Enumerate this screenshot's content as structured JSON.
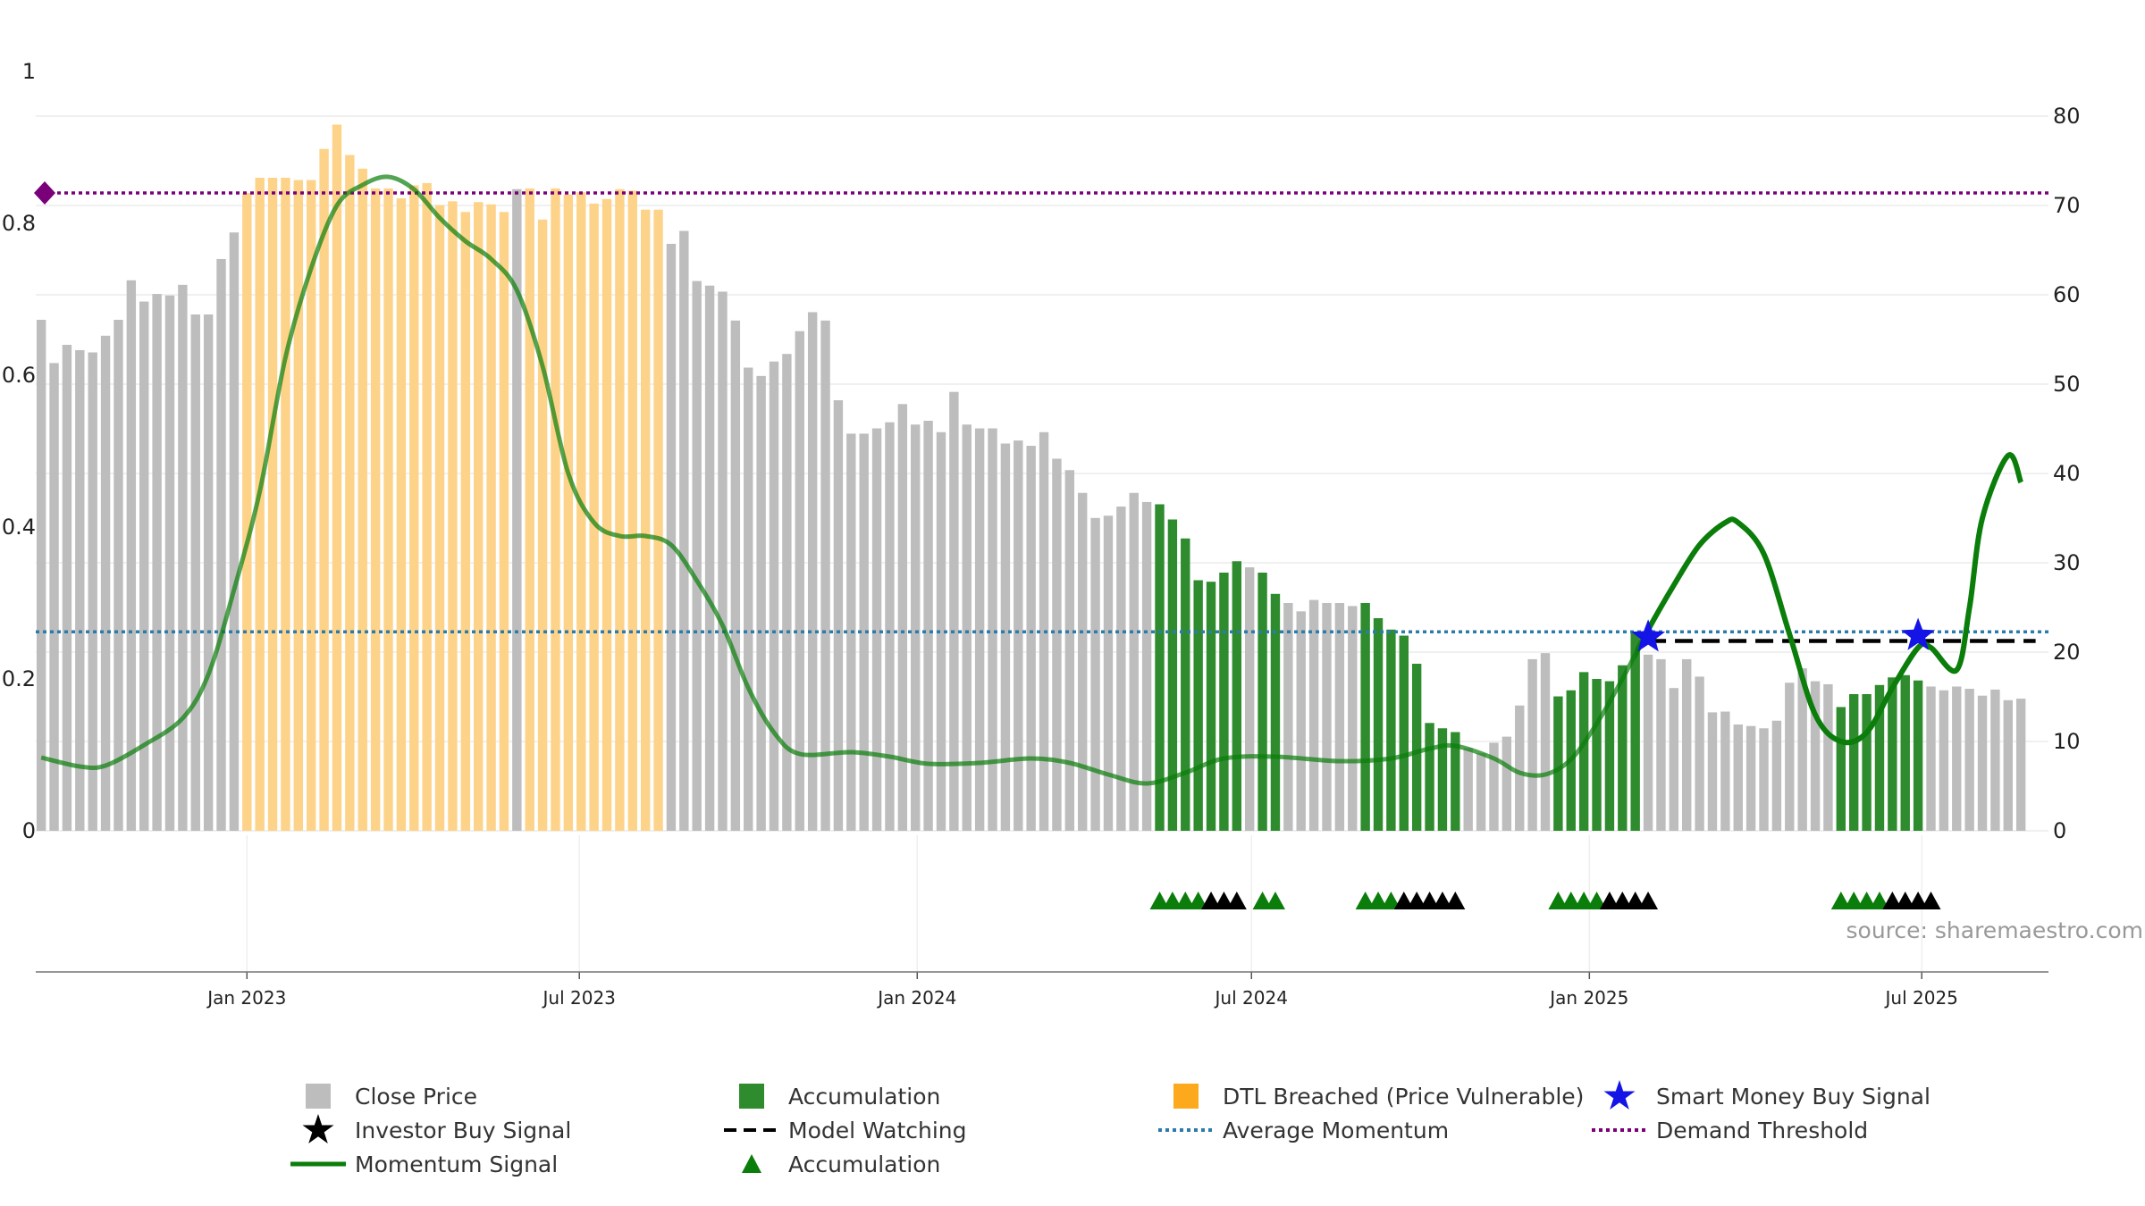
{
  "chart_data": {
    "type": "bar",
    "source": "source: sharemaestro.com",
    "y_left": {
      "lim": [
        0,
        1
      ],
      "ticks": [
        "0",
        "0.2",
        "0.4",
        "0.6",
        "0.8",
        "1"
      ]
    },
    "y_right": {
      "lim": [
        0,
        85
      ],
      "ticks": [
        "0",
        "10",
        "20",
        "30",
        "40",
        "50",
        "60",
        "70",
        "80"
      ]
    },
    "x_ticks": [
      "Jan 2023",
      "Jul 2023",
      "Jan 2024",
      "Jul 2024",
      "Jan 2025",
      "Jul 2025"
    ],
    "x_range": [
      "2022-09-08",
      "2025-09-08"
    ],
    "grid": true,
    "legend_position": "bottom",
    "colors": {
      "close": "#bdbdbd",
      "accumulation": "#2e8b2e",
      "dtl": "#fdd389",
      "momentum": "#0a7d0a",
      "average": "#2b7bab",
      "threshold": "#7a007a",
      "smart_money": "#1414e6"
    },
    "close_price": [
      [
        "2022-09-11",
        0.673
      ],
      [
        "2022-09-18",
        0.616
      ],
      [
        "2022-09-25",
        0.64
      ],
      [
        "2022-10-02",
        0.633
      ],
      [
        "2022-10-09",
        0.63
      ],
      [
        "2022-10-16",
        0.652
      ],
      [
        "2022-10-23",
        0.673
      ],
      [
        "2022-10-30",
        0.725
      ],
      [
        "2022-11-06",
        0.697
      ],
      [
        "2022-11-13",
        0.707
      ],
      [
        "2022-11-20",
        0.705
      ],
      [
        "2022-11-27",
        0.719
      ],
      [
        "2022-12-04",
        0.68
      ],
      [
        "2022-12-11",
        0.68
      ],
      [
        "2022-12-18",
        0.753
      ],
      [
        "2022-12-25",
        0.788
      ],
      [
        "2023-01-01",
        0.84,
        "dtl"
      ],
      [
        "2023-01-08",
        0.86,
        "dtl"
      ],
      [
        "2023-01-15",
        0.86,
        "dtl"
      ],
      [
        "2023-01-22",
        0.86,
        "dtl"
      ],
      [
        "2023-01-29",
        0.857,
        "dtl"
      ],
      [
        "2023-02-05",
        0.857,
        "dtl"
      ],
      [
        "2023-02-12",
        0.898,
        "dtl"
      ],
      [
        "2023-02-19",
        0.93,
        "dtl"
      ],
      [
        "2023-02-26",
        0.89,
        "dtl"
      ],
      [
        "2023-03-05",
        0.872,
        "dtl"
      ],
      [
        "2023-03-12",
        0.846,
        "dtl"
      ],
      [
        "2023-03-19",
        0.846,
        "dtl"
      ],
      [
        "2023-03-26",
        0.833,
        "dtl"
      ],
      [
        "2023-04-02",
        0.85,
        "dtl"
      ],
      [
        "2023-04-09",
        0.853,
        "dtl"
      ],
      [
        "2023-04-16",
        0.824,
        "dtl"
      ],
      [
        "2023-04-23",
        0.829,
        "dtl"
      ],
      [
        "2023-04-30",
        0.815,
        "dtl"
      ],
      [
        "2023-05-07",
        0.828,
        "dtl"
      ],
      [
        "2023-05-14",
        0.825,
        "dtl"
      ],
      [
        "2023-05-21",
        0.815,
        "dtl"
      ],
      [
        "2023-05-28",
        0.845
      ],
      [
        "2023-06-04",
        0.846,
        "dtl"
      ],
      [
        "2023-06-11",
        0.805,
        "dtl"
      ],
      [
        "2023-06-18",
        0.846,
        "dtl"
      ],
      [
        "2023-06-25",
        0.838,
        "dtl"
      ],
      [
        "2023-07-02",
        0.841,
        "dtl"
      ],
      [
        "2023-07-09",
        0.826,
        "dtl"
      ],
      [
        "2023-07-16",
        0.832,
        "dtl"
      ],
      [
        "2023-07-23",
        0.845,
        "dtl"
      ],
      [
        "2023-07-30",
        0.843,
        "dtl"
      ],
      [
        "2023-08-06",
        0.818,
        "dtl"
      ],
      [
        "2023-08-13",
        0.818,
        "dtl"
      ],
      [
        "2023-08-20",
        0.773
      ],
      [
        "2023-08-27",
        0.79
      ],
      [
        "2023-09-03",
        0.724
      ],
      [
        "2023-09-10",
        0.718
      ],
      [
        "2023-09-17",
        0.71
      ],
      [
        "2023-09-24",
        0.672
      ],
      [
        "2023-10-01",
        0.61
      ],
      [
        "2023-10-08",
        0.599
      ],
      [
        "2023-10-15",
        0.618
      ],
      [
        "2023-10-22",
        0.628
      ],
      [
        "2023-10-29",
        0.658
      ],
      [
        "2023-11-05",
        0.683
      ],
      [
        "2023-11-12",
        0.672
      ],
      [
        "2023-11-19",
        0.567
      ],
      [
        "2023-11-26",
        0.523
      ],
      [
        "2023-12-03",
        0.523
      ],
      [
        "2023-12-10",
        0.53
      ],
      [
        "2023-12-17",
        0.538
      ],
      [
        "2023-12-24",
        0.562
      ],
      [
        "2023-12-31",
        0.535
      ],
      [
        "2024-01-07",
        0.54
      ],
      [
        "2024-01-14",
        0.525
      ],
      [
        "2024-01-21",
        0.578
      ],
      [
        "2024-01-28",
        0.535
      ],
      [
        "2024-02-04",
        0.53
      ],
      [
        "2024-02-11",
        0.53
      ],
      [
        "2024-02-18",
        0.51
      ],
      [
        "2024-02-25",
        0.514
      ],
      [
        "2024-03-03",
        0.507
      ],
      [
        "2024-03-10",
        0.525
      ],
      [
        "2024-03-17",
        0.49
      ],
      [
        "2024-03-24",
        0.475
      ],
      [
        "2024-03-31",
        0.445
      ],
      [
        "2024-04-07",
        0.412
      ],
      [
        "2024-04-14",
        0.415
      ],
      [
        "2024-04-21",
        0.427
      ],
      [
        "2024-04-28",
        0.445
      ],
      [
        "2024-05-05",
        0.433
      ],
      [
        "2024-05-12",
        0.43,
        "acc"
      ],
      [
        "2024-05-19",
        0.41,
        "acc"
      ],
      [
        "2024-05-26",
        0.385,
        "acc"
      ],
      [
        "2024-06-02",
        0.33,
        "acc"
      ],
      [
        "2024-06-09",
        0.328,
        "acc"
      ],
      [
        "2024-06-16",
        0.34,
        "acc"
      ],
      [
        "2024-06-23",
        0.355,
        "acc"
      ],
      [
        "2024-06-30",
        0.347
      ],
      [
        "2024-07-07",
        0.34,
        "acc"
      ],
      [
        "2024-07-14",
        0.312,
        "acc"
      ],
      [
        "2024-07-21",
        0.3
      ],
      [
        "2024-07-28",
        0.289
      ],
      [
        "2024-08-04",
        0.304
      ],
      [
        "2024-08-11",
        0.3
      ],
      [
        "2024-08-18",
        0.3
      ],
      [
        "2024-08-25",
        0.296
      ],
      [
        "2024-09-01",
        0.3,
        "acc"
      ],
      [
        "2024-09-08",
        0.28,
        "acc"
      ],
      [
        "2024-09-15",
        0.265,
        "acc"
      ],
      [
        "2024-09-22",
        0.257,
        "acc"
      ],
      [
        "2024-09-29",
        0.22,
        "acc"
      ],
      [
        "2024-10-06",
        0.142,
        "acc"
      ],
      [
        "2024-10-13",
        0.135,
        "acc"
      ],
      [
        "2024-10-20",
        0.13,
        "acc"
      ],
      [
        "2024-10-27",
        0.109
      ],
      [
        "2024-11-03",
        0.102
      ],
      [
        "2024-11-10",
        0.116
      ],
      [
        "2024-11-17",
        0.124
      ],
      [
        "2024-11-24",
        0.165
      ],
      [
        "2024-12-01",
        0.226
      ],
      [
        "2024-12-08",
        0.234
      ],
      [
        "2024-12-15",
        0.177,
        "acc"
      ],
      [
        "2024-12-22",
        0.185,
        "acc"
      ],
      [
        "2024-12-29",
        0.209,
        "acc"
      ],
      [
        "2025-01-05",
        0.2,
        "acc"
      ],
      [
        "2025-01-12",
        0.197,
        "acc"
      ],
      [
        "2025-01-19",
        0.218,
        "acc"
      ],
      [
        "2025-01-26",
        0.26,
        "acc"
      ],
      [
        "2025-02-02",
        0.232
      ],
      [
        "2025-02-09",
        0.226
      ],
      [
        "2025-02-16",
        0.188
      ],
      [
        "2025-02-23",
        0.226
      ],
      [
        "2025-03-02",
        0.203
      ],
      [
        "2025-03-09",
        0.156
      ],
      [
        "2025-03-16",
        0.157
      ],
      [
        "2025-03-23",
        0.14
      ],
      [
        "2025-03-30",
        0.138
      ],
      [
        "2025-04-06",
        0.135
      ],
      [
        "2025-04-13",
        0.145
      ],
      [
        "2025-04-20",
        0.195
      ],
      [
        "2025-04-27",
        0.214
      ],
      [
        "2025-05-04",
        0.197
      ],
      [
        "2025-05-11",
        0.193
      ],
      [
        "2025-05-18",
        0.163,
        "acc"
      ],
      [
        "2025-05-25",
        0.18,
        "acc"
      ],
      [
        "2025-06-01",
        0.18,
        "acc"
      ],
      [
        "2025-06-08",
        0.192,
        "acc"
      ],
      [
        "2025-06-15",
        0.202,
        "acc"
      ],
      [
        "2025-06-22",
        0.205,
        "acc"
      ],
      [
        "2025-06-29",
        0.198,
        "acc"
      ],
      [
        "2025-07-06",
        0.19
      ],
      [
        "2025-07-13",
        0.185
      ],
      [
        "2025-07-20",
        0.19
      ],
      [
        "2025-07-27",
        0.187
      ],
      [
        "2025-08-03",
        0.178
      ],
      [
        "2025-08-10",
        0.186
      ],
      [
        "2025-08-17",
        0.172
      ],
      [
        "2025-08-24",
        0.174
      ]
    ],
    "momentum": [
      [
        "2022-09-11",
        8.2
      ],
      [
        "2022-10-02",
        7.2
      ],
      [
        "2022-10-16",
        7.3
      ],
      [
        "2022-11-06",
        9.6
      ],
      [
        "2022-11-27",
        12.6
      ],
      [
        "2022-12-11",
        17.5
      ],
      [
        "2022-12-25",
        27
      ],
      [
        "2023-01-08",
        38
      ],
      [
        "2023-01-22",
        53
      ],
      [
        "2023-02-05",
        63
      ],
      [
        "2023-02-19",
        70
      ],
      [
        "2023-03-05",
        72.3
      ],
      [
        "2023-03-19",
        73.2
      ],
      [
        "2023-04-02",
        71.8
      ],
      [
        "2023-04-16",
        68.6
      ],
      [
        "2023-04-30",
        66
      ],
      [
        "2023-05-14",
        64
      ],
      [
        "2023-05-28",
        60.5
      ],
      [
        "2023-06-11",
        52
      ],
      [
        "2023-06-25",
        40
      ],
      [
        "2023-07-09",
        34.5
      ],
      [
        "2023-07-23",
        33
      ],
      [
        "2023-08-06",
        33
      ],
      [
        "2023-08-20",
        32
      ],
      [
        "2023-09-03",
        28
      ],
      [
        "2023-09-17",
        23
      ],
      [
        "2023-10-01",
        16
      ],
      [
        "2023-10-15",
        11
      ],
      [
        "2023-10-29",
        8.6
      ],
      [
        "2023-11-26",
        8.8
      ],
      [
        "2023-12-17",
        8.3
      ],
      [
        "2024-01-07",
        7.5
      ],
      [
        "2024-02-04",
        7.6
      ],
      [
        "2024-03-03",
        8.1
      ],
      [
        "2024-03-24",
        7.6
      ],
      [
        "2024-04-14",
        6.3
      ],
      [
        "2024-05-05",
        5.3
      ],
      [
        "2024-05-26",
        6.5
      ],
      [
        "2024-06-16",
        8.1
      ],
      [
        "2024-07-14",
        8.3
      ],
      [
        "2024-08-18",
        7.8
      ],
      [
        "2024-09-15",
        8.1
      ],
      [
        "2024-10-06",
        9.2
      ],
      [
        "2024-10-20",
        9.5
      ],
      [
        "2024-11-10",
        8.1
      ],
      [
        "2024-11-24",
        6.5
      ],
      [
        "2024-12-08",
        6.3
      ],
      [
        "2024-12-22",
        8
      ],
      [
        "2025-01-05",
        12
      ],
      [
        "2025-01-19",
        17
      ],
      [
        "2025-02-02",
        22.5
      ],
      [
        "2025-02-16",
        27.5
      ],
      [
        "2025-03-02",
        32
      ],
      [
        "2025-03-16",
        34.5
      ],
      [
        "2025-03-23",
        34.5
      ],
      [
        "2025-04-06",
        31
      ],
      [
        "2025-04-20",
        22
      ],
      [
        "2025-05-04",
        13
      ],
      [
        "2025-05-18",
        10
      ],
      [
        "2025-06-01",
        11
      ],
      [
        "2025-06-15",
        16
      ],
      [
        "2025-06-29",
        20.5
      ],
      [
        "2025-07-06",
        20.5
      ],
      [
        "2025-07-20",
        18
      ],
      [
        "2025-07-27",
        25
      ],
      [
        "2025-08-03",
        35
      ],
      [
        "2025-08-17",
        42
      ],
      [
        "2025-08-24",
        39
      ]
    ],
    "demand_threshold": 0.84,
    "average_momentum": 0.262,
    "smart_money_buy_signals": [
      [
        "2025-02-02",
        0.255
      ],
      [
        "2025-06-29",
        0.257
      ]
    ],
    "model_watching": {
      "value": 0.25,
      "start": "2025-02-02",
      "end": "2025-09-01"
    },
    "accumulation_markers": [
      [
        "2024-05-12",
        "acc"
      ],
      [
        "2024-05-19",
        "acc"
      ],
      [
        "2024-05-26",
        "acc"
      ],
      [
        "2024-06-02",
        "acc"
      ],
      [
        "2024-06-09",
        "investor"
      ],
      [
        "2024-06-16",
        "investor"
      ],
      [
        "2024-06-23",
        "investor"
      ],
      [
        "2024-07-07",
        "acc"
      ],
      [
        "2024-07-14",
        "acc"
      ],
      [
        "2024-09-01",
        "acc"
      ],
      [
        "2024-09-08",
        "acc"
      ],
      [
        "2024-09-15",
        "acc"
      ],
      [
        "2024-09-22",
        "investor"
      ],
      [
        "2024-09-29",
        "investor"
      ],
      [
        "2024-10-06",
        "investor"
      ],
      [
        "2024-10-13",
        "investor"
      ],
      [
        "2024-10-20",
        "investor"
      ],
      [
        "2024-12-15",
        "acc"
      ],
      [
        "2024-12-22",
        "acc"
      ],
      [
        "2024-12-29",
        "acc"
      ],
      [
        "2025-01-05",
        "acc"
      ],
      [
        "2025-01-12",
        "investor"
      ],
      [
        "2025-01-19",
        "investor"
      ],
      [
        "2025-01-26",
        "investor"
      ],
      [
        "2025-02-02",
        "investor"
      ],
      [
        "2025-05-18",
        "acc"
      ],
      [
        "2025-05-25",
        "acc"
      ],
      [
        "2025-06-01",
        "acc"
      ],
      [
        "2025-06-08",
        "acc"
      ],
      [
        "2025-06-15",
        "investor"
      ],
      [
        "2025-06-22",
        "investor"
      ],
      [
        "2025-06-29",
        "investor"
      ],
      [
        "2025-07-06",
        "investor"
      ]
    ]
  },
  "legend": {
    "close_price": "Close Price",
    "investor_buy": "Investor Buy Signal",
    "momentum": "Momentum Signal",
    "accumulation_bar": "Accumulation",
    "model_watching": "Model Watching",
    "accumulation_marker": "Accumulation",
    "dtl": "DTL Breached (Price Vulnerable)",
    "average_momentum": "Average Momentum",
    "smart_money": "Smart Money Buy Signal",
    "demand_threshold": "Demand Threshold"
  }
}
